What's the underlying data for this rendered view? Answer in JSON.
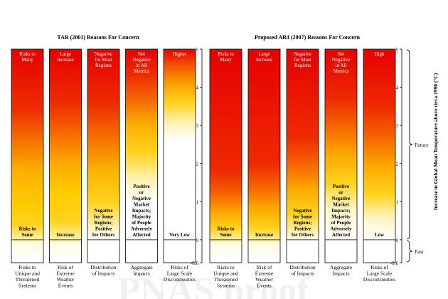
{
  "chart_data": [
    {
      "type": "heatmap",
      "title": "TAR (2001) Reasons For Concern",
      "ylim": [
        -0.6,
        5
      ],
      "y_ticks": [
        -0.6,
        0,
        1,
        2,
        3,
        4,
        5
      ],
      "columns": [
        {
          "category": "Risks to Unique and Threatened Systems",
          "top_label": "Risks to Many",
          "bottom_label": "Risks to Some",
          "color_stops": [
            [
              -0.6,
              "#ffffff"
            ],
            [
              -0.1,
              "#fffbe6"
            ],
            [
              0,
              "#fff2b0"
            ],
            [
              0.4,
              "#ffd21e"
            ],
            [
              0.9,
              "#ffcc00"
            ],
            [
              1.8,
              "#fbb000"
            ],
            [
              2.6,
              "#f57200"
            ],
            [
              3.4,
              "#ee2f00"
            ],
            [
              5,
              "#e60000"
            ]
          ]
        },
        {
          "category": "Risk of Extreme Weather Events",
          "top_label": "Large Increase",
          "bottom_label": "Increase",
          "color_stops": [
            [
              -0.6,
              "#ffffff"
            ],
            [
              -0.1,
              "#fffbe6"
            ],
            [
              0,
              "#fff2b0"
            ],
            [
              0.5,
              "#ffd21e"
            ],
            [
              1.2,
              "#ffcc00"
            ],
            [
              2.0,
              "#fbaa00"
            ],
            [
              2.8,
              "#f56a00"
            ],
            [
              3.6,
              "#ee2a00"
            ],
            [
              5,
              "#e60000"
            ]
          ]
        },
        {
          "category": "Distribution of Impacts",
          "top_label": "Negative for Most Regions",
          "bottom_label": "Negative for Some Regions; Positive for Others",
          "color_stops": [
            [
              -0.6,
              "#ffffff"
            ],
            [
              0,
              "#ffffff"
            ],
            [
              0.3,
              "#fff4c0"
            ],
            [
              1.0,
              "#ffd21e"
            ],
            [
              1.8,
              "#fbb400"
            ],
            [
              2.7,
              "#f56e00"
            ],
            [
              3.6,
              "#ee2a00"
            ],
            [
              5,
              "#e60000"
            ]
          ]
        },
        {
          "category": "Aggregate Impacts",
          "top_label": "Net Negative in All Metrics",
          "bottom_label": "Positive or Negative Market Impacts; Majority of People Adversely Affected",
          "color_stops": [
            [
              -0.6,
              "#ffffff"
            ],
            [
              0,
              "#ffffff"
            ],
            [
              1.0,
              "#ffffff"
            ],
            [
              1.6,
              "#fff1b0"
            ],
            [
              2.3,
              "#ffd21e"
            ],
            [
              3.0,
              "#fbb000"
            ],
            [
              3.6,
              "#f57000"
            ],
            [
              4.3,
              "#ee2e00"
            ],
            [
              5,
              "#e60000"
            ]
          ]
        },
        {
          "category": "Risks of Large Scale Discontinuities",
          "top_label": "Higher",
          "bottom_label": "Very Low",
          "color_stops": [
            [
              -0.6,
              "#ffffff"
            ],
            [
              0,
              "#ffffff"
            ],
            [
              2.6,
              "#ffffff"
            ],
            [
              3.1,
              "#fff0b0"
            ],
            [
              3.6,
              "#ffd21e"
            ],
            [
              4.1,
              "#f9a000"
            ],
            [
              4.6,
              "#f25000"
            ],
            [
              5,
              "#e60000"
            ]
          ]
        }
      ]
    },
    {
      "type": "heatmap",
      "title": "Proposed AR4 (2007) Reasons For Concern",
      "ylim": [
        -0.6,
        5
      ],
      "y_ticks": [
        -0.6,
        0,
        1,
        2,
        3,
        4,
        5
      ],
      "ylabel": "Increase in Global Mean Temperature above circa 1990 (°C)",
      "brackets": [
        "Future",
        "Past"
      ],
      "columns": [
        {
          "category": "Risks to Unique and Threatened Systems",
          "top_label": "Risks to Many",
          "bottom_label": "Risks to Some",
          "color_stops": [
            [
              -0.6,
              "#ffffff"
            ],
            [
              -0.1,
              "#fffbe6"
            ],
            [
              0,
              "#fff0a8"
            ],
            [
              0.3,
              "#ffd21e"
            ],
            [
              0.7,
              "#fbab00"
            ],
            [
              1.2,
              "#f56400"
            ],
            [
              1.8,
              "#ee2a00"
            ],
            [
              5,
              "#e60000"
            ]
          ]
        },
        {
          "category": "Risk of Extreme Weather Events",
          "top_label": "Large Increase",
          "bottom_label": "Increase",
          "color_stops": [
            [
              -0.6,
              "#ffffff"
            ],
            [
              -0.1,
              "#fffbe6"
            ],
            [
              0,
              "#fff0a8"
            ],
            [
              0.3,
              "#ffd21e"
            ],
            [
              0.8,
              "#fbab00"
            ],
            [
              1.4,
              "#f56400"
            ],
            [
              2.0,
              "#ee2a00"
            ],
            [
              5,
              "#e60000"
            ]
          ]
        },
        {
          "category": "Distribution of Impacts",
          "top_label": "Negative for Most Regions",
          "bottom_label": "Negative for Some Regions; Positive for Others",
          "color_stops": [
            [
              -0.6,
              "#ffffff"
            ],
            [
              0,
              "#ffffff"
            ],
            [
              0.2,
              "#fff0b0"
            ],
            [
              0.7,
              "#ffd21e"
            ],
            [
              1.3,
              "#fbab00"
            ],
            [
              2.0,
              "#f56400"
            ],
            [
              2.7,
              "#ee2a00"
            ],
            [
              5,
              "#e60000"
            ]
          ]
        },
        {
          "category": "Aggregate Impacts",
          "top_label": "Net Negative in All Metrics",
          "bottom_label": "Positive or Negative Market Impacts; Majority of People Adversely Affected",
          "color_stops": [
            [
              -0.6,
              "#ffffff"
            ],
            [
              0,
              "#ffffff"
            ],
            [
              0.8,
              "#fff6c8"
            ],
            [
              1.5,
              "#ffd21e"
            ],
            [
              2.2,
              "#fbab00"
            ],
            [
              3.0,
              "#f56400"
            ],
            [
              3.7,
              "#ee2a00"
            ],
            [
              5,
              "#e60000"
            ]
          ]
        },
        {
          "category": "Risks of Large Scale Discontinuities",
          "top_label": "High",
          "bottom_label": "Low",
          "color_stops": [
            [
              -0.6,
              "#ffffff"
            ],
            [
              0,
              "#ffffff"
            ],
            [
              0.6,
              "#fff4c0"
            ],
            [
              1.2,
              "#ffd21e"
            ],
            [
              1.9,
              "#fbab00"
            ],
            [
              2.7,
              "#f56400"
            ],
            [
              3.5,
              "#ee2a00"
            ],
            [
              5,
              "#e60000"
            ]
          ]
        }
      ]
    }
  ],
  "watermark": "PNAS proof"
}
